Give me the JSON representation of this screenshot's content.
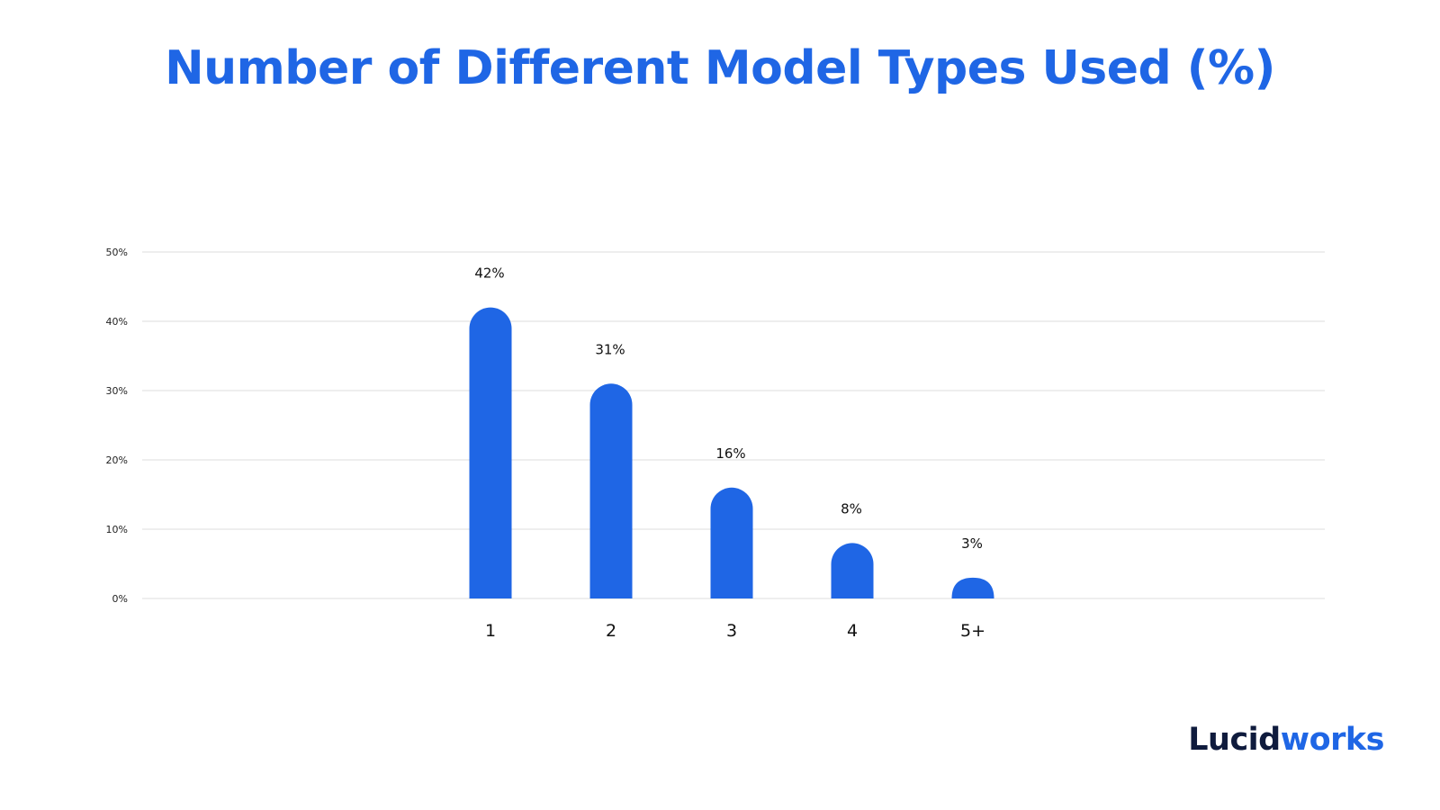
{
  "chart_data": {
    "type": "bar",
    "title": "Number of Different Model Types Used (%)",
    "xlabel": "",
    "ylabel": "",
    "categories": [
      "1",
      "2",
      "3",
      "4",
      "5+"
    ],
    "values": [
      42,
      31,
      16,
      8,
      3
    ],
    "data_labels": [
      "42%",
      "31%",
      "16%",
      "8%",
      "3%"
    ],
    "yticks": [
      0,
      10,
      20,
      30,
      40,
      50
    ],
    "ytick_labels": [
      "0%",
      "10%",
      "20%",
      "30%",
      "40%",
      "50%"
    ],
    "ylim": [
      0,
      50
    ],
    "grid": true,
    "bar_color": "#1f66e5",
    "bar_shape": "rounded-top"
  },
  "brand": {
    "logo_part1": "Lucid",
    "logo_part2": "works",
    "dark_color": "#0f1b3d",
    "accent_color": "#1f66e5"
  }
}
